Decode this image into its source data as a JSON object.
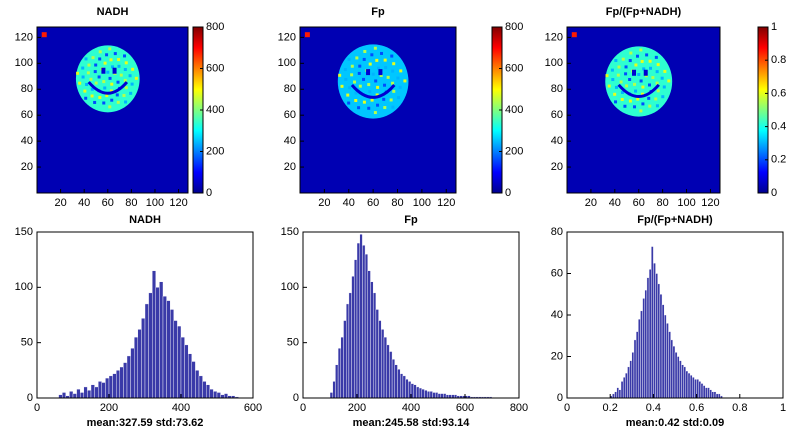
{
  "chart_data": [
    {
      "type": "heatmap",
      "title": "NADH",
      "colormap": "jet",
      "xlim": [
        0,
        128
      ],
      "xticks": [
        20,
        40,
        60,
        80,
        100,
        120
      ],
      "ylim": [
        0,
        128
      ],
      "yticks": [
        20,
        40,
        60,
        80,
        100,
        120
      ],
      "clim": [
        0,
        800
      ],
      "cticks": [
        0,
        200,
        400,
        600,
        800
      ]
    },
    {
      "type": "heatmap",
      "title": "Fp",
      "colormap": "jet",
      "xlim": [
        0,
        128
      ],
      "xticks": [
        20,
        40,
        60,
        80,
        100,
        120
      ],
      "ylim": [
        0,
        128
      ],
      "yticks": [
        20,
        40,
        60,
        80,
        100,
        120
      ],
      "clim": [
        0,
        800
      ],
      "cticks": [
        0,
        200,
        400,
        600,
        800
      ]
    },
    {
      "type": "heatmap",
      "title": "Fp/(Fp+NADH)",
      "colormap": "jet",
      "xlim": [
        0,
        128
      ],
      "xticks": [
        20,
        40,
        60,
        80,
        100,
        120
      ],
      "ylim": [
        0,
        128
      ],
      "yticks": [
        20,
        40,
        60,
        80,
        100,
        120
      ],
      "clim": [
        0,
        1
      ],
      "cticks": [
        0,
        0.2,
        0.4,
        0.6,
        0.8,
        1
      ]
    },
    {
      "type": "histogram",
      "title": "NADH",
      "xlabel": "mean:327.59 std:73.62",
      "color": "#3a3aa8",
      "bins": [
        60,
        70,
        80,
        90,
        100,
        110,
        120,
        130,
        140,
        150,
        160,
        170,
        180,
        190,
        200,
        210,
        220,
        230,
        240,
        250,
        260,
        270,
        280,
        290,
        300,
        310,
        320,
        330,
        340,
        350,
        360,
        370,
        380,
        390,
        400,
        410,
        420,
        430,
        440,
        450,
        460,
        470,
        480,
        490,
        500,
        510,
        520,
        530,
        540,
        550,
        560
      ],
      "counts": [
        3,
        5,
        2,
        6,
        4,
        8,
        5,
        10,
        7,
        12,
        10,
        15,
        14,
        18,
        20,
        22,
        25,
        28,
        32,
        38,
        45,
        55,
        62,
        72,
        85,
        95,
        115,
        100,
        105,
        92,
        88,
        80,
        70,
        65,
        55,
        48,
        40,
        33,
        25,
        20,
        15,
        12,
        8,
        6,
        5,
        3,
        4,
        2,
        2,
        1
      ],
      "xlim": [
        0,
        600
      ],
      "xticks": [
        0,
        200,
        400,
        600
      ],
      "ylim": [
        0,
        150
      ],
      "yticks": [
        0,
        50,
        100,
        150
      ]
    },
    {
      "type": "histogram",
      "title": "Fp",
      "xlabel": "mean:245.58 std:93.14",
      "color": "#3a3aa8",
      "bins": [
        100,
        110,
        120,
        130,
        140,
        150,
        160,
        170,
        180,
        190,
        200,
        210,
        220,
        230,
        240,
        250,
        260,
        270,
        280,
        290,
        300,
        310,
        320,
        330,
        340,
        350,
        360,
        370,
        380,
        390,
        400,
        410,
        420,
        430,
        440,
        450,
        460,
        470,
        480,
        490,
        500,
        510,
        520,
        530,
        540,
        550,
        560,
        570,
        580,
        590,
        600,
        610,
        620,
        630,
        640,
        650,
        660,
        670,
        680,
        690,
        700
      ],
      "counts": [
        5,
        15,
        30,
        45,
        55,
        70,
        85,
        95,
        110,
        125,
        140,
        148,
        138,
        130,
        115,
        105,
        95,
        80,
        70,
        62,
        55,
        48,
        42,
        35,
        30,
        26,
        22,
        20,
        17,
        15,
        13,
        12,
        10,
        9,
        8,
        7,
        6,
        6,
        5,
        5,
        4,
        4,
        4,
        3,
        3,
        3,
        3,
        2,
        2,
        2,
        2,
        2,
        1,
        1,
        1,
        1,
        1,
        1,
        1,
        1
      ],
      "xlim": [
        0,
        800
      ],
      "xticks": [
        0,
        200,
        400,
        600,
        800
      ],
      "ylim": [
        0,
        150
      ],
      "yticks": [
        0,
        50,
        100,
        150
      ]
    },
    {
      "type": "histogram",
      "title": "Fp/(Fp+NADH)",
      "xlabel": "mean:0.42 std:0.09",
      "color": "#3a3aa8",
      "bins": [
        0.2,
        0.21,
        0.22,
        0.23,
        0.24,
        0.25,
        0.26,
        0.27,
        0.28,
        0.29,
        0.3,
        0.31,
        0.32,
        0.33,
        0.34,
        0.35,
        0.36,
        0.37,
        0.38,
        0.39,
        0.4,
        0.41,
        0.42,
        0.43,
        0.44,
        0.45,
        0.46,
        0.47,
        0.48,
        0.49,
        0.5,
        0.51,
        0.52,
        0.53,
        0.54,
        0.55,
        0.56,
        0.57,
        0.58,
        0.59,
        0.6,
        0.61,
        0.62,
        0.63,
        0.64,
        0.65,
        0.66,
        0.67,
        0.68,
        0.69,
        0.7,
        0.71,
        0.72
      ],
      "counts": [
        1,
        2,
        3,
        5,
        4,
        8,
        10,
        12,
        15,
        18,
        22,
        28,
        32,
        38,
        42,
        48,
        52,
        58,
        62,
        73,
        65,
        60,
        55,
        50,
        45,
        40,
        36,
        32,
        28,
        25,
        22,
        20,
        18,
        16,
        15,
        13,
        12,
        11,
        10,
        9,
        9,
        8,
        7,
        6,
        5,
        5,
        4,
        3,
        3,
        2,
        2,
        1
      ],
      "xlim": [
        0,
        1
      ],
      "xticks": [
        0,
        0.2,
        0.4,
        0.6,
        0.8,
        1
      ],
      "ylim": [
        0,
        80
      ],
      "yticks": [
        0,
        20,
        40,
        60,
        80
      ]
    }
  ]
}
